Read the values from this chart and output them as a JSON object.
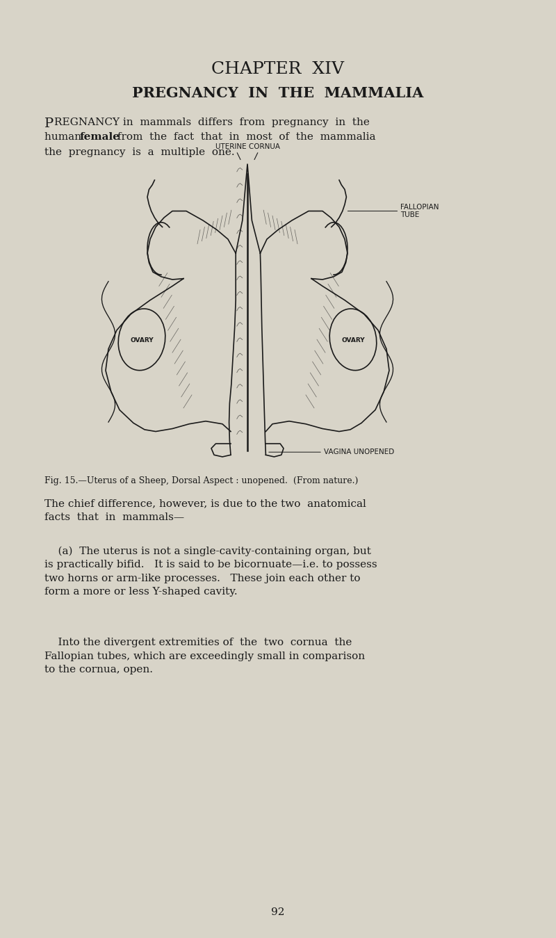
{
  "bg_color": "#d8d4c8",
  "text_color": "#1a1a1a",
  "line_color": "#1a1a1a",
  "page_width": 8.0,
  "page_height": 13.49,
  "chapter_title": "CHAPTER  XIV",
  "section_title": "PREGNANCY  IN  THE  MAMMALIA",
  "fig_label_uterine_cornua": "UTERINE CORNUA",
  "fig_label_fallopian": "FALLOPIAN\nTUBE",
  "fig_label_vagina": "VAGINA UNOPENED",
  "fig_label_ovary_left": "OVARY",
  "fig_label_ovary_right": "OVARY",
  "fig_caption": "Fig. 15.—Uterus of a Sheep, Dorsal Aspect : unopened.  (From nature.)",
  "para2": "The chief difference, however, is due to the two  anatomical\nfacts  that  in  mammals—",
  "para3": "    (a)  The uterus is not a single-cavity-containing organ, but\nis practically bifid.   It is said to be bicornuate—i.e. to possess\ntwo horns or arm-like processes.   These join each other to\nform a more or less Y-shaped cavity.",
  "para4": "    Into the divergent extremities of  the  two  cornua  the\nFallopian tubes, which are exceedingly small in comparison\nto the cornua, open.",
  "page_num": "92"
}
